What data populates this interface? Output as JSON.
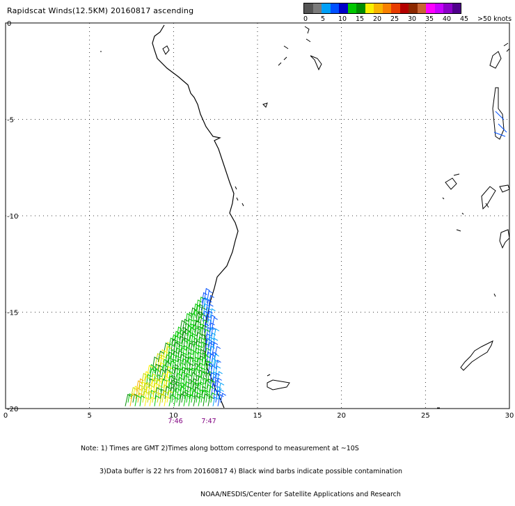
{
  "title": "Rapidscat Winds(12.5KM) 20160817 ascending",
  "legend": {
    "colors": [
      "#555555",
      "#7b7b7b",
      "#00a0f8",
      "#0050ff",
      "#0000c8",
      "#00c800",
      "#008c00",
      "#f8f000",
      "#f8b400",
      "#f88000",
      "#e83c00",
      "#b40000",
      "#8c2800",
      "#c86432",
      "#ff00ff",
      "#c800ff",
      "#8c00c8",
      "#50008c"
    ],
    "labels": [
      "0",
      "5",
      "10",
      "15",
      "20",
      "25",
      "30",
      "35",
      "40",
      "45",
      ">50 knots"
    ]
  },
  "axes": {
    "x_ticks": [
      "0",
      "5",
      "10",
      "15",
      "20",
      "25",
      "30"
    ],
    "y_ticks": [
      "0",
      "-5",
      "-10",
      "-15",
      "-20"
    ],
    "x_range": [
      0,
      30
    ],
    "y_range": [
      0,
      -20
    ]
  },
  "time_labels": [
    "7:46",
    "7:47"
  ],
  "notes": [
    "Note: 1) Times are GMT 2)Times along bottom correspond to measurement at ~10S",
    "3)Data buffer is 22 hrs from 20160817 4) Black wind barbs indicate possible contamination",
    "NOAA/NESDIS/Center for Satellite Applications and Research"
  ]
}
